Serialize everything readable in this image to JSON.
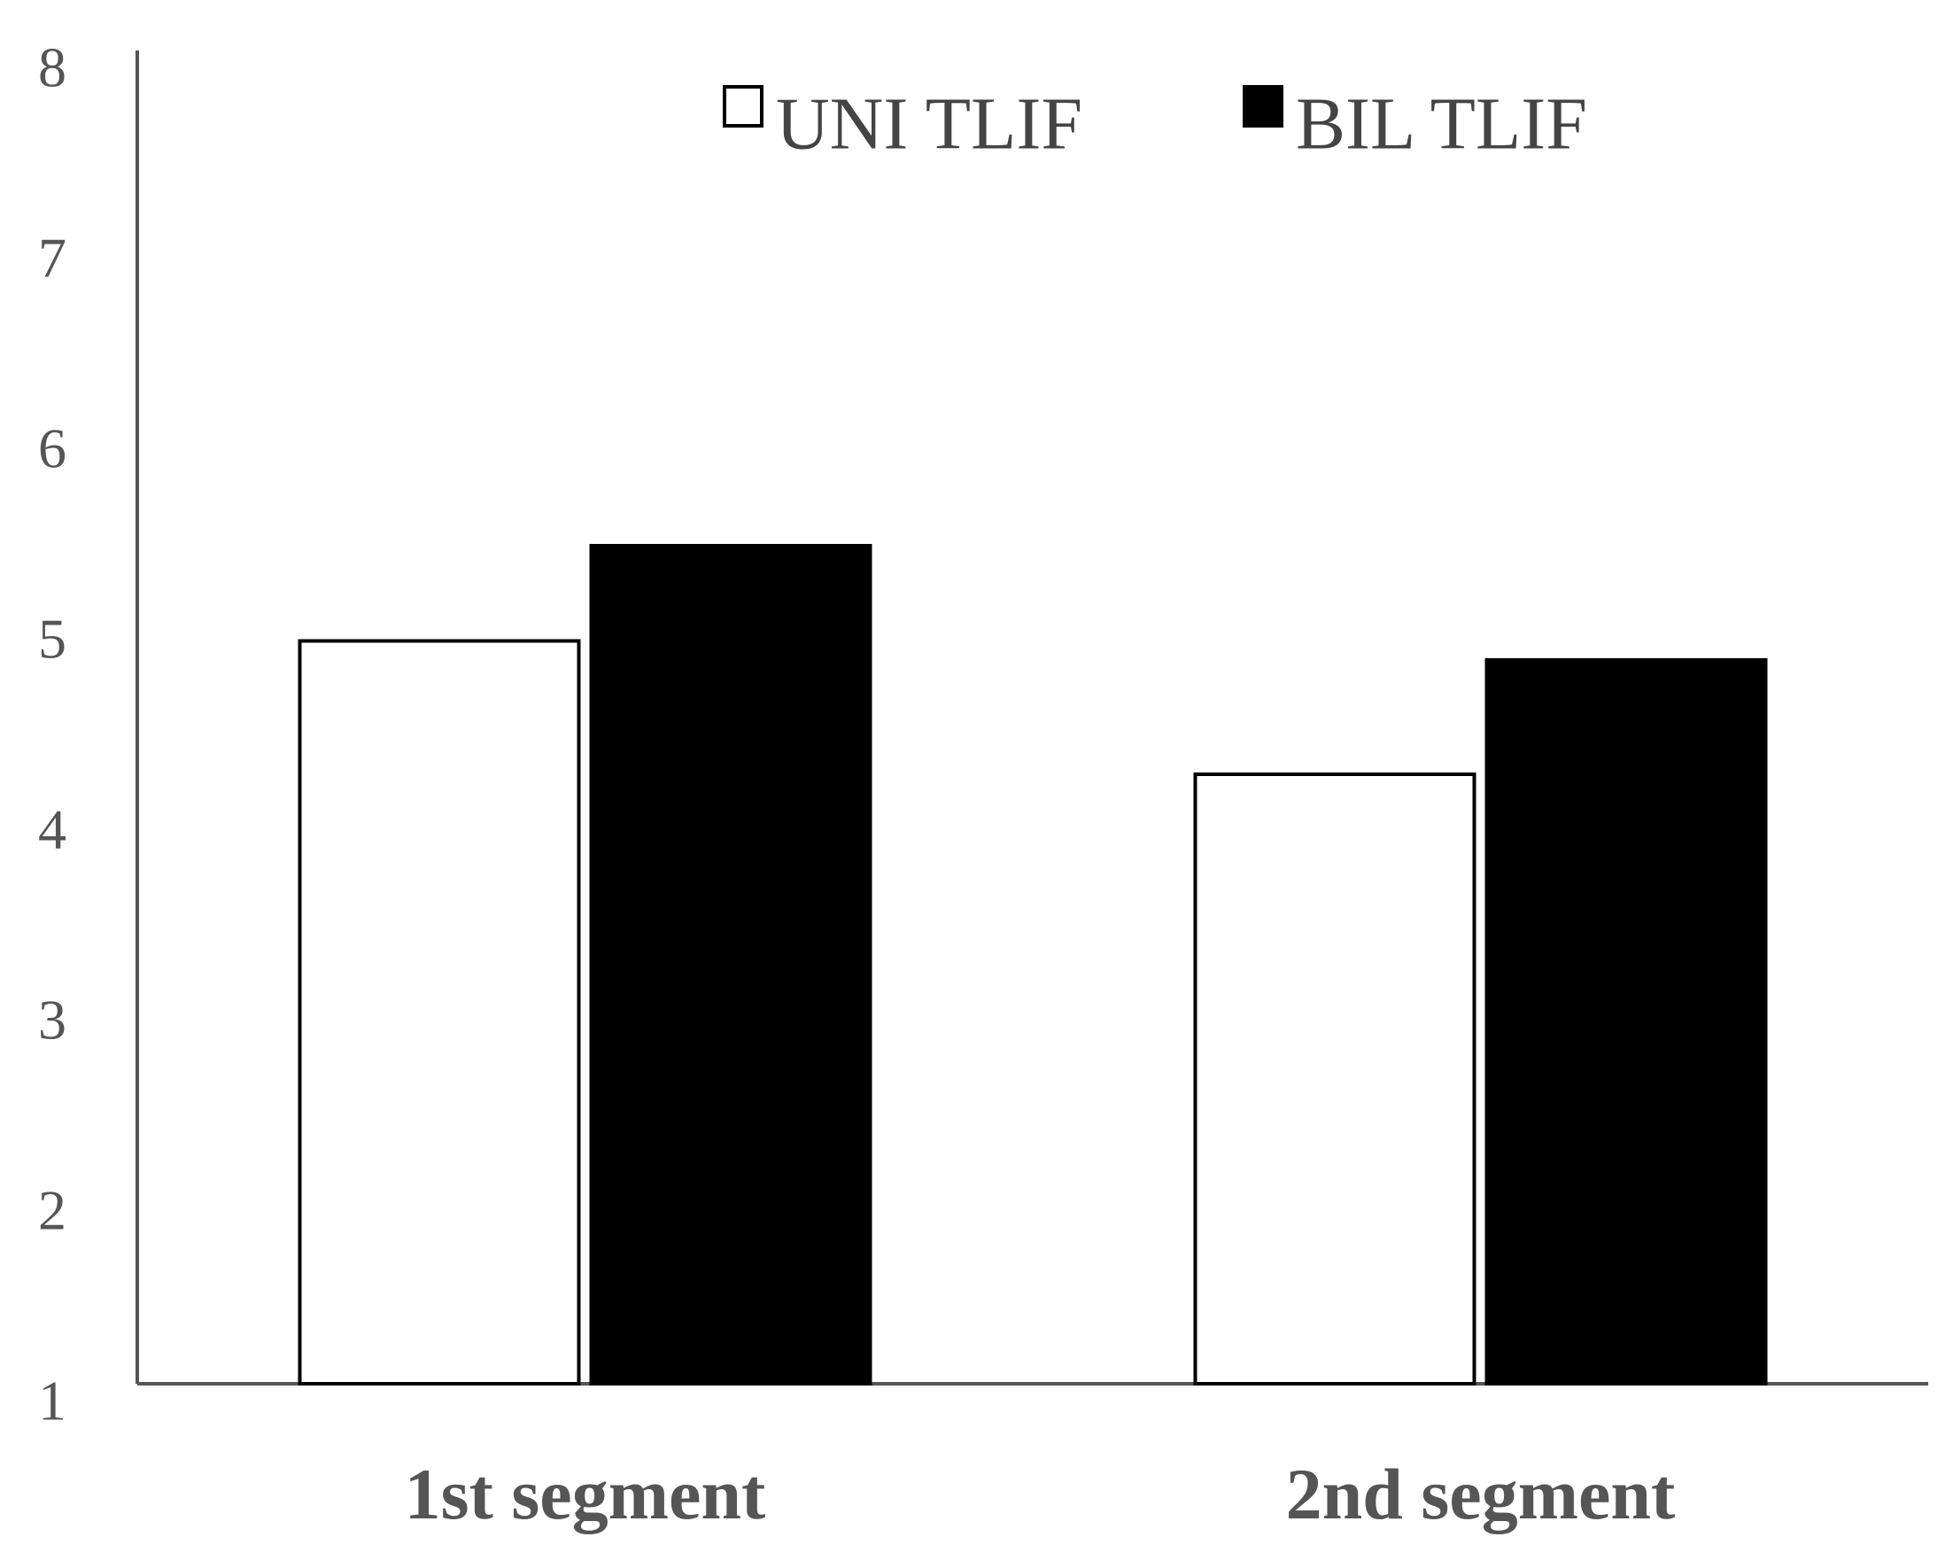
{
  "chart_data": {
    "type": "bar",
    "categories": [
      "1st segment",
      "2nd segment"
    ],
    "series": [
      {
        "name": "UNI TLIF",
        "color": "#ffffff",
        "values": [
          4.9,
          4.2
        ]
      },
      {
        "name": "BIL TLIF",
        "color": "#000000",
        "values": [
          5.4,
          4.8
        ]
      }
    ],
    "ylim": [
      1,
      8
    ],
    "yticks": [
      1,
      2,
      3,
      4,
      5,
      6,
      7,
      8
    ],
    "grid": false
  }
}
